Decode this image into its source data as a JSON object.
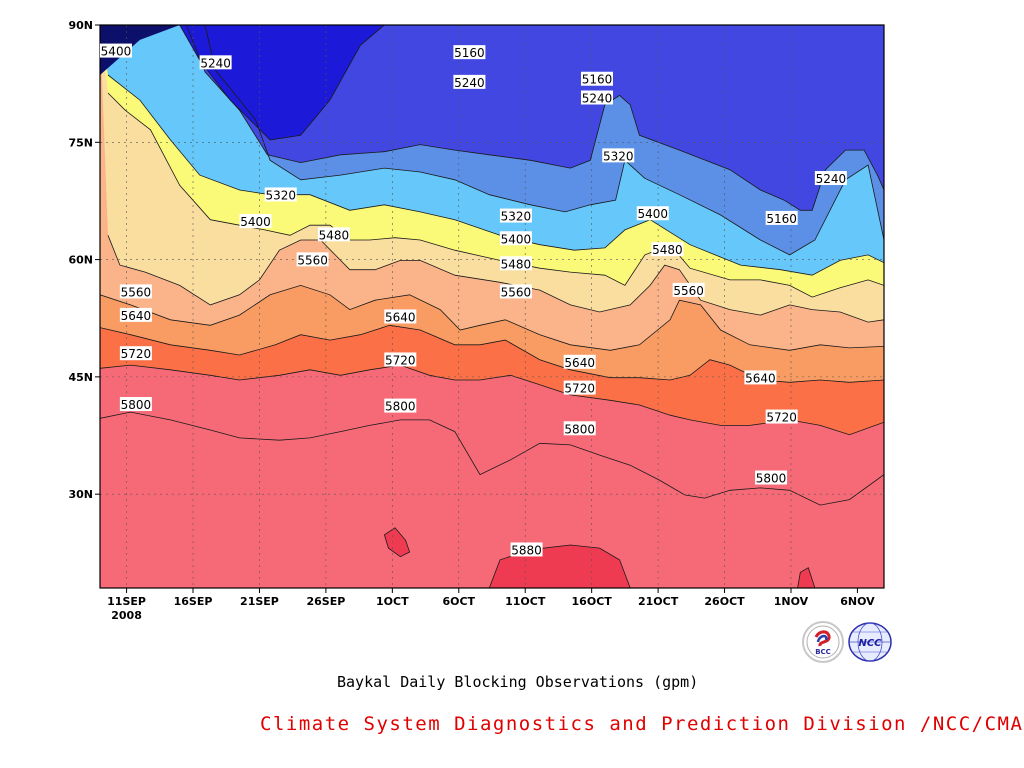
{
  "chart_data": {
    "type": "contour",
    "title": "Baykal Daily Blocking Observations (gpm)",
    "units": "gpm",
    "x_axis": {
      "ticks": [
        "11SEP",
        "16SEP",
        "21SEP",
        "26SEP",
        "1OCT",
        "6OCT",
        "11OCT",
        "16OCT",
        "21OCT",
        "26OCT",
        "1NOV",
        "6NOV"
      ],
      "year_label": "2008"
    },
    "y_axis": {
      "ticks": [
        "30N",
        "45N",
        "60N",
        "75N",
        "90N"
      ],
      "range": [
        "18N",
        "90N"
      ]
    },
    "contour_levels": [
      5160,
      5240,
      5320,
      5400,
      5480,
      5560,
      5640,
      5720,
      5800,
      5880
    ],
    "fill_colors": [
      "#0c106b",
      "#1c1ad8",
      "#4147e0",
      "#5b90e6",
      "#66c7fa",
      "#fafa78",
      "#f9dea0",
      "#fbb48a",
      "#f99c64",
      "#fb7047",
      "#f66a77",
      "#ee3b52"
    ],
    "contour_labels": [
      {
        "value": "5400",
        "lat": 86.6,
        "day": 1.2
      },
      {
        "value": "5240",
        "lat": 85.1,
        "day": 8.7
      },
      {
        "value": "5160",
        "lat": 86.4,
        "day": 27.8
      },
      {
        "value": "5240",
        "lat": 82.6,
        "day": 27.8
      },
      {
        "value": "5160",
        "lat": 83.0,
        "day": 37.4
      },
      {
        "value": "5240",
        "lat": 80.6,
        "day": 37.4
      },
      {
        "value": "5320",
        "lat": 73.2,
        "day": 39.0
      },
      {
        "value": "5240",
        "lat": 70.3,
        "day": 55.0
      },
      {
        "value": "5160",
        "lat": 65.2,
        "day": 51.3
      },
      {
        "value": "5320",
        "lat": 68.2,
        "day": 13.6
      },
      {
        "value": "5400",
        "lat": 64.8,
        "day": 11.7
      },
      {
        "value": "5480",
        "lat": 63.1,
        "day": 17.6
      },
      {
        "value": "5560",
        "lat": 59.9,
        "day": 16.0
      },
      {
        "value": "5320",
        "lat": 65.5,
        "day": 31.3
      },
      {
        "value": "5400",
        "lat": 62.6,
        "day": 31.3
      },
      {
        "value": "5480",
        "lat": 59.4,
        "day": 31.3
      },
      {
        "value": "5560",
        "lat": 55.8,
        "day": 31.3
      },
      {
        "value": "5400",
        "lat": 65.8,
        "day": 41.6
      },
      {
        "value": "5480",
        "lat": 61.2,
        "day": 42.7
      },
      {
        "value": "5560",
        "lat": 56.0,
        "day": 44.3
      },
      {
        "value": "5560",
        "lat": 55.8,
        "day": 2.7
      },
      {
        "value": "5640",
        "lat": 52.8,
        "day": 2.7
      },
      {
        "value": "5720",
        "lat": 47.9,
        "day": 2.7
      },
      {
        "value": "5800",
        "lat": 41.4,
        "day": 2.7
      },
      {
        "value": "5640",
        "lat": 52.6,
        "day": 22.6
      },
      {
        "value": "5720",
        "lat": 47.1,
        "day": 22.6
      },
      {
        "value": "5800",
        "lat": 41.2,
        "day": 22.6
      },
      {
        "value": "5640",
        "lat": 46.8,
        "day": 36.1
      },
      {
        "value": "5720",
        "lat": 43.5,
        "day": 36.1
      },
      {
        "value": "5800",
        "lat": 38.3,
        "day": 36.1
      },
      {
        "value": "5640",
        "lat": 44.8,
        "day": 49.7
      },
      {
        "value": "5720",
        "lat": 39.8,
        "day": 51.3
      },
      {
        "value": "5800",
        "lat": 32.0,
        "day": 50.5
      },
      {
        "value": "5880",
        "lat": 22.8,
        "day": 32.1
      }
    ]
  },
  "caption": {
    "main": "Baykal Daily Blocking Observations (gpm)",
    "sub": "Climate System Diagnostics and Prediction Division /NCC/CMA"
  },
  "logos": {
    "bcc": "BCC",
    "ncc": "NCC",
    "bcc_icon": "bcc-logo",
    "ncc_icon": "ncc-globe-logo"
  }
}
